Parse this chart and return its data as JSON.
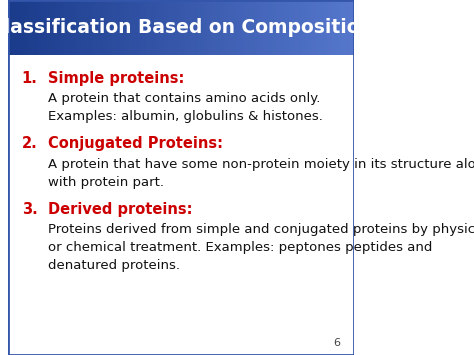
{
  "title": "Classification Based on Composition",
  "title_color": "#FFFFFF",
  "title_bg_start": "#1a3a8a",
  "title_bg_end": "#5577cc",
  "slide_bg": "#FFFFFF",
  "border_color": "#3355aa",
  "page_number": "6",
  "items": [
    {
      "number": "1.",
      "heading": "Simple proteins:",
      "heading_color": "#cc0000",
      "body_lines": [
        "A protein that contains amino acids only.",
        "Examples: albumin, globulins & histones."
      ]
    },
    {
      "number": "2.",
      "heading": "Conjugated Proteins:",
      "heading_color": "#cc0000",
      "body_lines": [
        "A protein that have some non-protein moiety in its structure along",
        "with protein part."
      ]
    },
    {
      "number": "3.",
      "heading": "Derived proteins:",
      "heading_color": "#cc0000",
      "body_lines": [
        "Proteins derived from simple and conjugated proteins by physical",
        "or chemical treatment. Examples: peptones peptides and",
        "denatured proteins."
      ]
    }
  ],
  "number_color": "#cc0000",
  "body_color": "#111111",
  "heading_fontsize": 10.5,
  "body_fontsize": 9.5,
  "number_fontsize": 10.5,
  "title_fontsize": 13.5
}
